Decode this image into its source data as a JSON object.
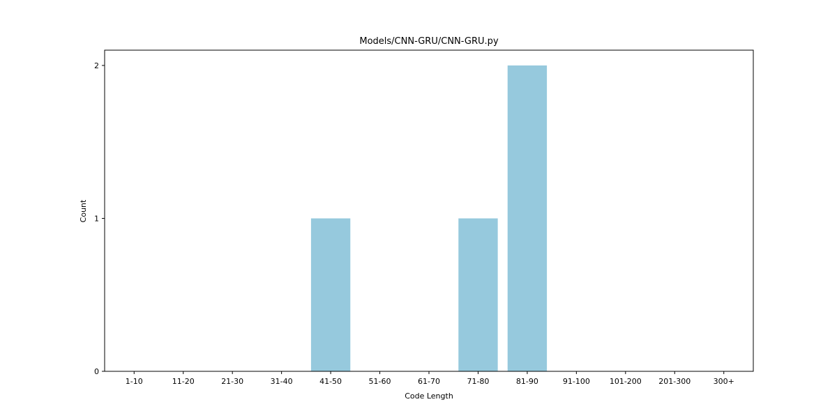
{
  "chart_data": {
    "type": "bar",
    "title": "Models/CNN-GRU/CNN-GRU.py",
    "xlabel": "Code Length",
    "ylabel": "Count",
    "categories": [
      "1-10",
      "11-20",
      "21-30",
      "31-40",
      "41-50",
      "51-60",
      "61-70",
      "71-80",
      "81-90",
      "91-100",
      "101-200",
      "201-300",
      "300+"
    ],
    "values": [
      0,
      0,
      0,
      0,
      1,
      0,
      0,
      1,
      2,
      0,
      0,
      0,
      0
    ],
    "ylim": [
      0,
      2.1
    ],
    "yticks": [
      0,
      1,
      2
    ],
    "bar_color": "#96c9dd",
    "grid": false,
    "legend": "none"
  }
}
